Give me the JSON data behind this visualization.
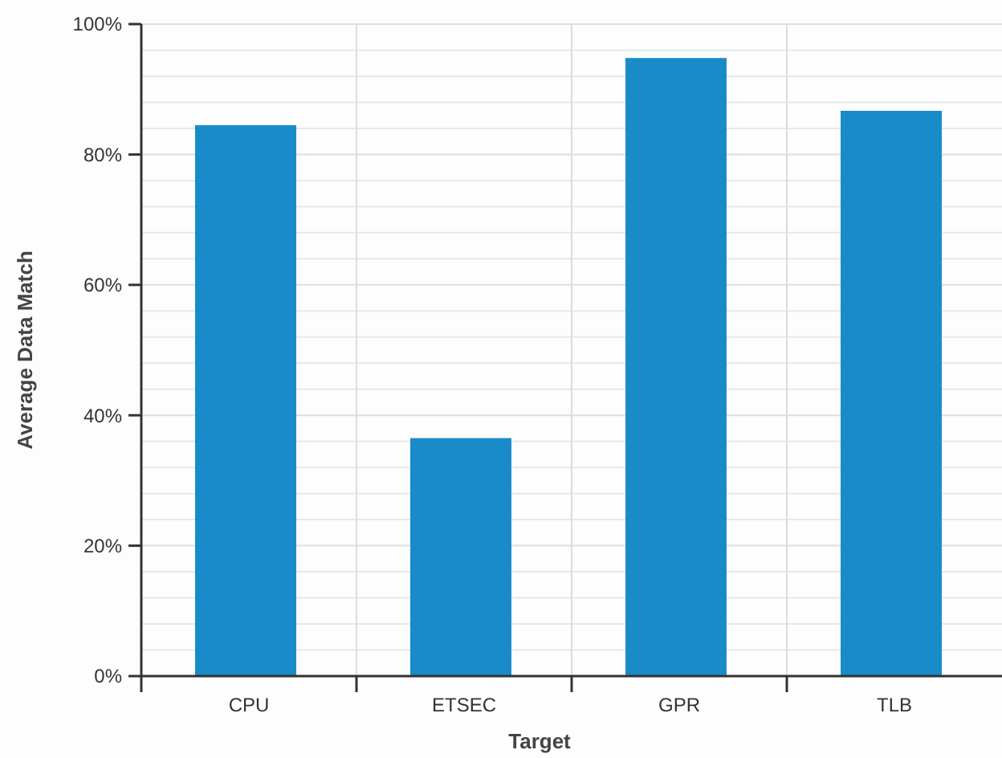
{
  "chart_data": {
    "type": "bar",
    "xlabel": "Target",
    "ylabel": "Average Data Match",
    "categories": [
      "CPU",
      "ETSEC",
      "GPR",
      "TLB"
    ],
    "values": [
      84.5,
      36.5,
      94.8,
      86.7
    ],
    "color": "#1a8bc9",
    "ylim": [
      0,
      100
    ],
    "yticks": [
      {
        "value": 0,
        "label": "0%"
      },
      {
        "value": 20,
        "label": "20%"
      },
      {
        "value": 40,
        "label": "40%"
      },
      {
        "value": 60,
        "label": "60%"
      },
      {
        "value": 80,
        "label": "80%"
      },
      {
        "value": 100,
        "label": "100%"
      }
    ],
    "grid": true
  }
}
